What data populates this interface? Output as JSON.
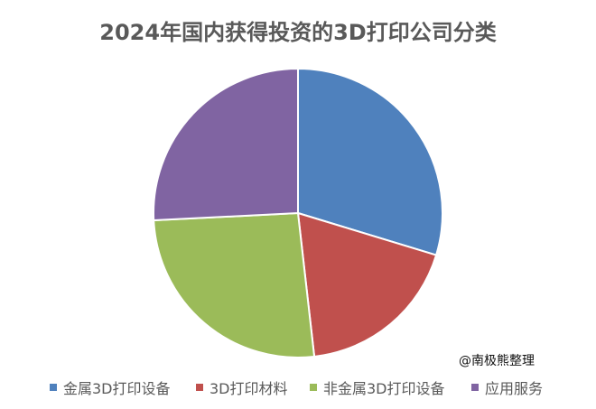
{
  "title": "2024年国内获得投资的3D打印公司分类",
  "watermark": "@南极熊整理",
  "chart_data": {
    "type": "pie",
    "title": "2024年国内获得投资的3D打印公司分类",
    "categories": [
      "金属3D打印设备",
      "3D打印材料",
      "非金属3D打印设备",
      "应用服务"
    ],
    "values": [
      29.7,
      18.5,
      26.0,
      25.8
    ],
    "unit": "% (estimated share from slice angles)",
    "colors": [
      "#4F81BD",
      "#C0504D",
      "#9BBB59",
      "#8064A2"
    ],
    "start_angle_deg": 0,
    "direction": "clockwise",
    "legend_position": "bottom",
    "data_labels": false
  },
  "legend": {
    "items": [
      {
        "label": "金属3D打印设备",
        "color": "#4F81BD"
      },
      {
        "label": "3D打印材料",
        "color": "#C0504D"
      },
      {
        "label": "非金属3D打印设备",
        "color": "#9BBB59"
      },
      {
        "label": "应用服务",
        "color": "#8064A2"
      }
    ]
  }
}
